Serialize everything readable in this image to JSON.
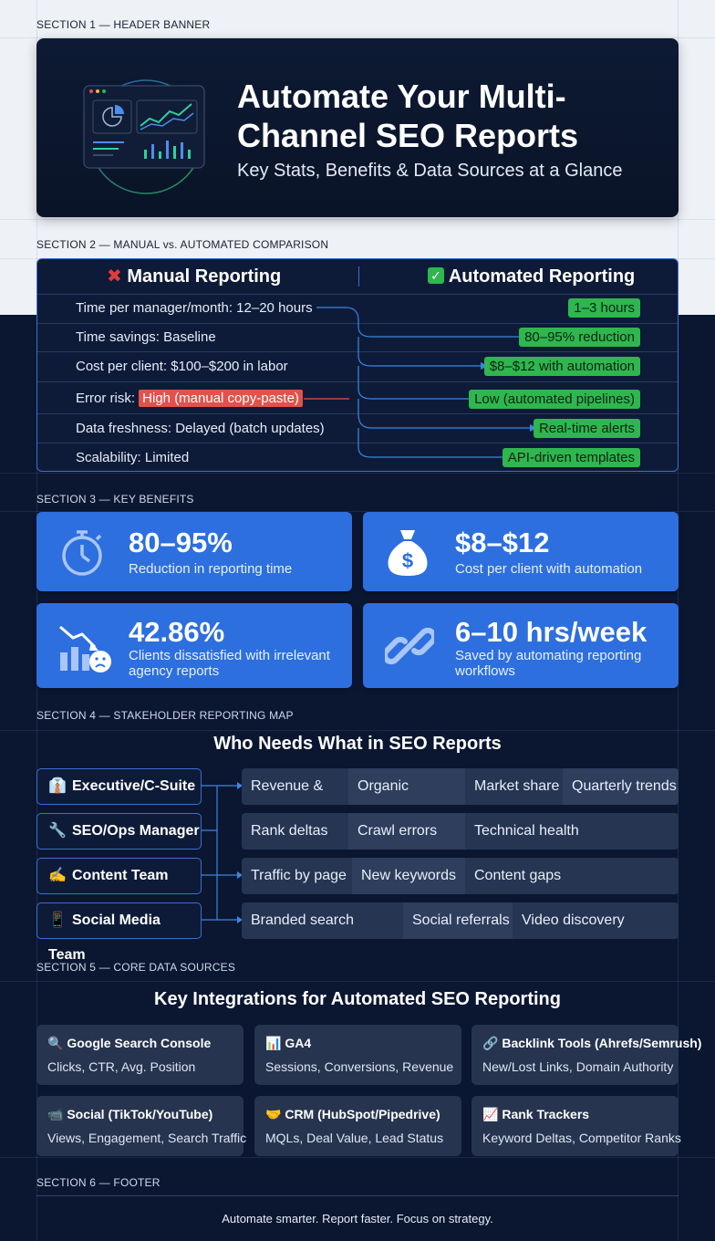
{
  "sections": {
    "s1": "SECTION 1 — HEADER BANNER",
    "s2": "SECTION 2 — MANUAL vs. AUTOMATED COMPARISON",
    "s3": "SECTION 3 — KEY BENEFITS",
    "s4": "SECTION 4 — STAKEHOLDER REPORTING MAP",
    "s5": "SECTION 5 — CORE DATA SOURCES",
    "s6": "SECTION 6 — FOOTER"
  },
  "header": {
    "title": "Automate Your Multi-Channel SEO Reports",
    "subtitle": "Key Stats, Benefits & Data Sources at a Glance"
  },
  "comparison": {
    "manual_heading": "Manual Reporting",
    "automated_heading": "Automated Reporting",
    "rows": [
      {
        "left": "Time per manager/month: 12–20 hours",
        "right": "1–3 hours"
      },
      {
        "left": "Time savings: Baseline",
        "right": "80–95% reduction"
      },
      {
        "left": "Cost per client: $100–$200 in labor",
        "right": "$8–$12 with automation"
      },
      {
        "left_prefix": "Error risk: ",
        "left_highlight": "High (manual copy-paste)",
        "right": "Low (automated pipelines)"
      },
      {
        "left": "Data freshness: Delayed (batch updates)",
        "right": "Real-time alerts"
      },
      {
        "left": "Scalability: Limited",
        "right": "API-driven templates"
      }
    ]
  },
  "benefits": [
    {
      "value": "80–95%",
      "desc": "Reduction in reporting time",
      "icon": "stopwatch-icon"
    },
    {
      "value": "$8–$12",
      "desc": "Cost per client with automation",
      "icon": "money-bag-icon"
    },
    {
      "value": "42.86%",
      "desc": "Clients dissatisfied with irrelevant agency reports",
      "icon": "declining-chart-icon"
    },
    {
      "value": "6–10 hrs/week",
      "desc": "Saved by automating reporting workflows",
      "icon": "chain-link-icon"
    }
  ],
  "stakeholders": {
    "title": "Who Needs What in SEO Reports",
    "rows": [
      {
        "emoji": "👔",
        "name": "Executive/C-Suite",
        "needs": [
          "Revenue & ROI",
          "Organic revenue",
          "Market share",
          "Quarterly trends"
        ]
      },
      {
        "emoji": "🔧",
        "name": "SEO/Ops Manager",
        "needs": [
          "Rank deltas",
          "Crawl errors",
          "Technical health"
        ]
      },
      {
        "emoji": "✍️",
        "name": "Content Team",
        "needs": [
          "Traffic by page",
          "New keywords",
          "Content gaps"
        ]
      },
      {
        "emoji": "📱",
        "name": "Social Media Team",
        "needs": [
          "Branded search volume",
          "Social referrals",
          "Video discovery"
        ]
      }
    ]
  },
  "integrations": {
    "title": "Key Integrations for Automated SEO Reporting",
    "cards": [
      {
        "emoji": "🔍",
        "title": "Google Search Console",
        "desc": "Clicks, CTR, Avg. Position"
      },
      {
        "emoji": "📊",
        "title": "GA4",
        "desc": "Sessions, Conversions, Revenue"
      },
      {
        "emoji": "🔗",
        "title": "Backlink Tools (Ahrefs/Semrush)",
        "desc": "New/Lost Links, Domain Authority"
      },
      {
        "emoji": "📹",
        "title": "Social (TikTok/YouTube)",
        "desc": "Views, Engagement, Search Traffic"
      },
      {
        "emoji": "🤝",
        "title": "CRM (HubSpot/Pipedrive)",
        "desc": "MQLs, Deal Value, Lead Status"
      },
      {
        "emoji": "📈",
        "title": "Rank Trackers",
        "desc": "Keyword Deltas, Competitor Ranks"
      }
    ]
  },
  "footer": {
    "text": "Automate smarter. Report faster. Focus on strategy."
  },
  "colors": {
    "accent_blue": "#2d6fde",
    "success_green": "#2fb64f",
    "error_red": "#e2524b",
    "navy": "#0b1631"
  }
}
